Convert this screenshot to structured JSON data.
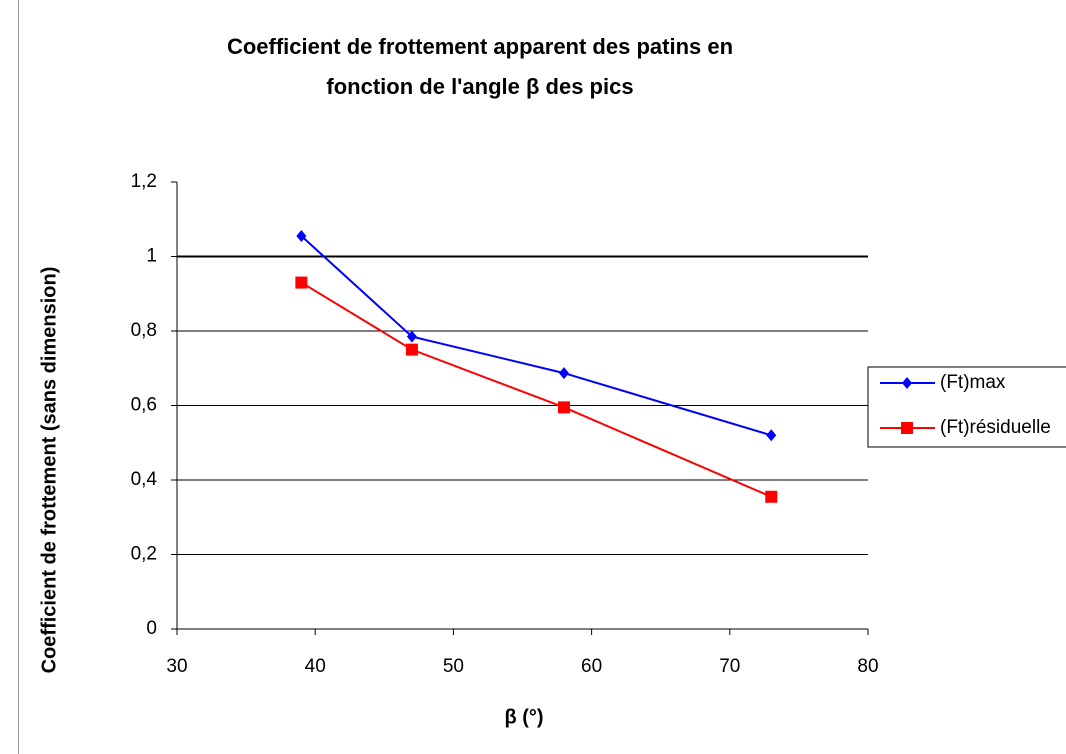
{
  "chart_data": {
    "type": "line",
    "title": [
      "Coefficient de frottement apparent des patins en",
      "fonction de l'angle β des pics"
    ],
    "x_label": "β (°)",
    "y_label": "Coefficient de frottement (sans dimension)",
    "x": [
      39,
      47,
      58,
      73
    ],
    "series": [
      {
        "name": "(Ft)max",
        "color": "#0000ff",
        "marker": "diamond",
        "values": [
          1.055,
          0.785,
          0.687,
          0.52
        ]
      },
      {
        "name": "(Ft)résiduelle",
        "color": "#ff0000",
        "marker": "square",
        "values": [
          0.93,
          0.75,
          0.595,
          0.355
        ]
      }
    ],
    "xlim": [
      30,
      80
    ],
    "xticks": [
      30,
      40,
      50,
      60,
      70,
      80
    ],
    "ylim": [
      0,
      1.2
    ],
    "yticks": [
      0,
      {
        "value": 0.2,
        "label": "0,2"
      },
      {
        "value": 0.4,
        "label": "0,4"
      },
      {
        "value": 0.6,
        "label": "0,6"
      },
      {
        "value": 0.8,
        "label": "0,8"
      },
      1,
      {
        "value": 1.2,
        "label": "1,2"
      }
    ],
    "grid": true,
    "legend": "right"
  }
}
